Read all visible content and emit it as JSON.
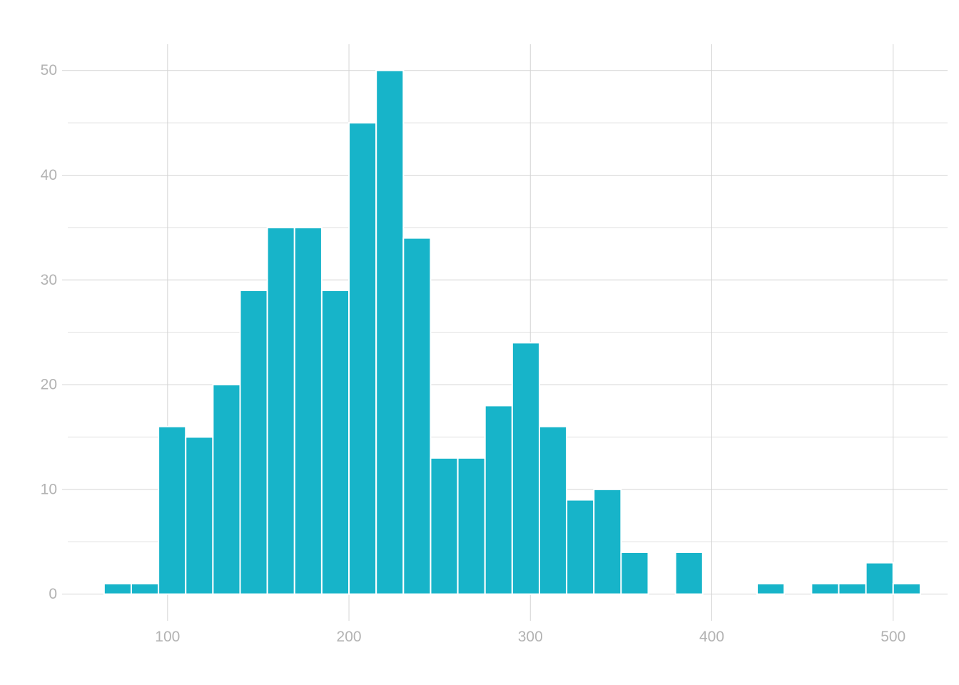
{
  "chart_data": {
    "type": "bar",
    "subtype": "histogram",
    "title": "",
    "xlabel": "",
    "ylabel": "",
    "bins": [
      {
        "x0": 65,
        "x1": 80,
        "count": 1
      },
      {
        "x0": 80,
        "x1": 95,
        "count": 1
      },
      {
        "x0": 95,
        "x1": 110,
        "count": 16
      },
      {
        "x0": 110,
        "x1": 125,
        "count": 15
      },
      {
        "x0": 125,
        "x1": 140,
        "count": 20
      },
      {
        "x0": 140,
        "x1": 155,
        "count": 29
      },
      {
        "x0": 155,
        "x1": 170,
        "count": 35
      },
      {
        "x0": 170,
        "x1": 185,
        "count": 35
      },
      {
        "x0": 185,
        "x1": 200,
        "count": 29
      },
      {
        "x0": 200,
        "x1": 215,
        "count": 45
      },
      {
        "x0": 215,
        "x1": 230,
        "count": 50
      },
      {
        "x0": 230,
        "x1": 245,
        "count": 34
      },
      {
        "x0": 245,
        "x1": 260,
        "count": 13
      },
      {
        "x0": 260,
        "x1": 275,
        "count": 13
      },
      {
        "x0": 275,
        "x1": 290,
        "count": 18
      },
      {
        "x0": 290,
        "x1": 305,
        "count": 24
      },
      {
        "x0": 305,
        "x1": 320,
        "count": 16
      },
      {
        "x0": 320,
        "x1": 335,
        "count": 9
      },
      {
        "x0": 335,
        "x1": 350,
        "count": 10
      },
      {
        "x0": 350,
        "x1": 365,
        "count": 4
      },
      {
        "x0": 365,
        "x1": 380,
        "count": 0
      },
      {
        "x0": 380,
        "x1": 395,
        "count": 4
      },
      {
        "x0": 395,
        "x1": 410,
        "count": 0
      },
      {
        "x0": 410,
        "x1": 425,
        "count": 0
      },
      {
        "x0": 425,
        "x1": 440,
        "count": 1
      },
      {
        "x0": 440,
        "x1": 455,
        "count": 0
      },
      {
        "x0": 455,
        "x1": 470,
        "count": 1
      },
      {
        "x0": 470,
        "x1": 485,
        "count": 1
      },
      {
        "x0": 485,
        "x1": 500,
        "count": 3
      },
      {
        "x0": 500,
        "x1": 515,
        "count": 1
      }
    ],
    "xlim": [
      45,
      530
    ],
    "ylim": [
      -2,
      52.5
    ],
    "x_ticks": [
      "100",
      "200",
      "300",
      "400",
      "500"
    ],
    "x_tick_values": [
      100,
      200,
      300,
      400,
      500
    ],
    "y_ticks": [
      "0",
      "10",
      "20",
      "30",
      "40",
      "50"
    ],
    "y_tick_values": [
      0,
      10,
      20,
      30,
      40,
      50
    ],
    "y_minor_values": [
      5,
      15,
      25,
      35,
      45
    ],
    "grid": true,
    "legend": "none",
    "colors": {
      "bar_fill": "#17b4c9",
      "bar_stroke": "#ffffff",
      "grid_major": "#d4d4d4",
      "grid_minor": "#e0e0e0",
      "tick_text": "#b3b3b3",
      "background": "#ffffff"
    }
  }
}
